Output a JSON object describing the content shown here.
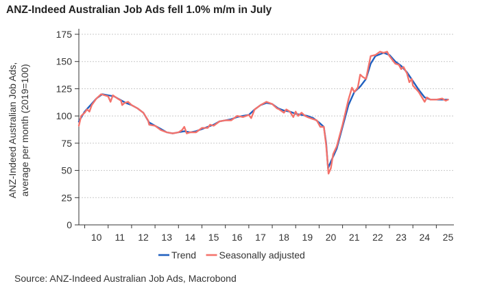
{
  "title": "ANZ-Indeed Australian Job Ads fell 1.0% m/m in July",
  "source": "Source: ANZ-Indeed Australian Job Ads, Macrobond",
  "chart_data": {
    "type": "line",
    "ylabel_line1": "ANZ-Indeed Australian Job Ads,",
    "ylabel_line2": "average per month (2019=100)",
    "xlabel": "",
    "ylim": [
      0,
      175
    ],
    "yticks": [
      0,
      25,
      50,
      75,
      100,
      125,
      150,
      175
    ],
    "xlim": [
      2009.75,
      2025.75
    ],
    "xticks": [
      "10",
      "11",
      "12",
      "13",
      "14",
      "15",
      "16",
      "17",
      "18",
      "19",
      "20",
      "21",
      "22",
      "23",
      "24",
      "25"
    ],
    "grid": true,
    "legend": "bottom",
    "series": [
      {
        "name": "Trend",
        "color": "#1f5fbf",
        "points": [
          [
            2009.75,
            95
          ],
          [
            2010.0,
            104
          ],
          [
            2010.25,
            110
          ],
          [
            2010.5,
            116
          ],
          [
            2010.75,
            120
          ],
          [
            2011.0,
            119
          ],
          [
            2011.25,
            118
          ],
          [
            2011.5,
            115
          ],
          [
            2011.75,
            112
          ],
          [
            2012.0,
            110
          ],
          [
            2012.25,
            107
          ],
          [
            2012.5,
            103
          ],
          [
            2012.75,
            94
          ],
          [
            2013.0,
            91
          ],
          [
            2013.25,
            88
          ],
          [
            2013.5,
            85
          ],
          [
            2013.75,
            84
          ],
          [
            2014.0,
            85
          ],
          [
            2014.25,
            86
          ],
          [
            2014.5,
            85
          ],
          [
            2014.75,
            86
          ],
          [
            2015.0,
            88
          ],
          [
            2015.25,
            90
          ],
          [
            2015.5,
            92
          ],
          [
            2015.75,
            95
          ],
          [
            2016.0,
            96
          ],
          [
            2016.25,
            97
          ],
          [
            2016.5,
            99
          ],
          [
            2016.75,
            100
          ],
          [
            2017.0,
            101
          ],
          [
            2017.25,
            106
          ],
          [
            2017.5,
            110
          ],
          [
            2017.75,
            112
          ],
          [
            2018.0,
            111
          ],
          [
            2018.25,
            107
          ],
          [
            2018.5,
            105
          ],
          [
            2018.75,
            104
          ],
          [
            2019.0,
            102
          ],
          [
            2019.25,
            101
          ],
          [
            2019.5,
            100
          ],
          [
            2019.75,
            98
          ],
          [
            2020.0,
            94
          ],
          [
            2020.2,
            90
          ],
          [
            2020.3,
            75
          ],
          [
            2020.38,
            52
          ],
          [
            2020.5,
            58
          ],
          [
            2020.75,
            70
          ],
          [
            2021.0,
            90
          ],
          [
            2021.25,
            110
          ],
          [
            2021.5,
            122
          ],
          [
            2021.75,
            127
          ],
          [
            2022.0,
            134
          ],
          [
            2022.2,
            148
          ],
          [
            2022.4,
            155
          ],
          [
            2022.75,
            158
          ],
          [
            2023.0,
            156
          ],
          [
            2023.25,
            150
          ],
          [
            2023.5,
            146
          ],
          [
            2023.75,
            140
          ],
          [
            2024.0,
            132
          ],
          [
            2024.25,
            124
          ],
          [
            2024.5,
            117
          ],
          [
            2024.75,
            115
          ],
          [
            2025.0,
            115
          ],
          [
            2025.25,
            115
          ],
          [
            2025.5,
            115
          ]
        ]
      },
      {
        "name": "Seasonally adjusted",
        "color": "#f4726b",
        "points": [
          [
            2009.75,
            91
          ],
          [
            2009.85,
            100
          ],
          [
            2010.0,
            103
          ],
          [
            2010.1,
            106
          ],
          [
            2010.2,
            104
          ],
          [
            2010.3,
            110
          ],
          [
            2010.5,
            116
          ],
          [
            2010.7,
            120
          ],
          [
            2010.85,
            119
          ],
          [
            2011.0,
            118
          ],
          [
            2011.1,
            113
          ],
          [
            2011.2,
            119
          ],
          [
            2011.4,
            116
          ],
          [
            2011.55,
            114
          ],
          [
            2011.6,
            110
          ],
          [
            2011.7,
            112
          ],
          [
            2011.85,
            113
          ],
          [
            2012.0,
            110
          ],
          [
            2012.25,
            107
          ],
          [
            2012.5,
            103
          ],
          [
            2012.7,
            96
          ],
          [
            2012.75,
            92
          ],
          [
            2013.0,
            91
          ],
          [
            2013.25,
            87
          ],
          [
            2013.5,
            85
          ],
          [
            2013.75,
            84
          ],
          [
            2014.0,
            85
          ],
          [
            2014.15,
            87
          ],
          [
            2014.25,
            90
          ],
          [
            2014.35,
            84
          ],
          [
            2014.5,
            85
          ],
          [
            2014.75,
            85
          ],
          [
            2015.0,
            89
          ],
          [
            2015.25,
            89
          ],
          [
            2015.35,
            92
          ],
          [
            2015.5,
            91
          ],
          [
            2015.75,
            95
          ],
          [
            2016.0,
            96
          ],
          [
            2016.25,
            96
          ],
          [
            2016.5,
            100
          ],
          [
            2016.75,
            99
          ],
          [
            2017.0,
            101
          ],
          [
            2017.1,
            98
          ],
          [
            2017.25,
            106
          ],
          [
            2017.5,
            110
          ],
          [
            2017.75,
            113
          ],
          [
            2018.0,
            111
          ],
          [
            2018.2,
            107
          ],
          [
            2018.3,
            106
          ],
          [
            2018.5,
            103
          ],
          [
            2018.6,
            106
          ],
          [
            2018.75,
            104
          ],
          [
            2018.9,
            99
          ],
          [
            2019.0,
            104
          ],
          [
            2019.1,
            100
          ],
          [
            2019.25,
            103
          ],
          [
            2019.4,
            100
          ],
          [
            2019.5,
            99
          ],
          [
            2019.75,
            97
          ],
          [
            2019.9,
            96
          ],
          [
            2020.05,
            90
          ],
          [
            2020.2,
            90
          ],
          [
            2020.3,
            73
          ],
          [
            2020.4,
            47
          ],
          [
            2020.5,
            52
          ],
          [
            2020.6,
            65
          ],
          [
            2020.75,
            72
          ],
          [
            2021.0,
            92
          ],
          [
            2021.25,
            115
          ],
          [
            2021.4,
            126
          ],
          [
            2021.5,
            122
          ],
          [
            2021.65,
            126
          ],
          [
            2021.75,
            138
          ],
          [
            2021.85,
            136
          ],
          [
            2022.0,
            134
          ],
          [
            2022.2,
            155
          ],
          [
            2022.4,
            156
          ],
          [
            2022.6,
            159
          ],
          [
            2022.75,
            158
          ],
          [
            2022.9,
            159
          ],
          [
            2023.0,
            155
          ],
          [
            2023.25,
            148
          ],
          [
            2023.4,
            147
          ],
          [
            2023.5,
            143
          ],
          [
            2023.6,
            145
          ],
          [
            2023.75,
            139
          ],
          [
            2023.85,
            131
          ],
          [
            2023.95,
            134
          ],
          [
            2024.0,
            128
          ],
          [
            2024.25,
            122
          ],
          [
            2024.5,
            113
          ],
          [
            2024.6,
            117
          ],
          [
            2024.75,
            115
          ],
          [
            2025.0,
            115
          ],
          [
            2025.25,
            116
          ],
          [
            2025.4,
            114
          ],
          [
            2025.5,
            115
          ]
        ]
      }
    ]
  }
}
